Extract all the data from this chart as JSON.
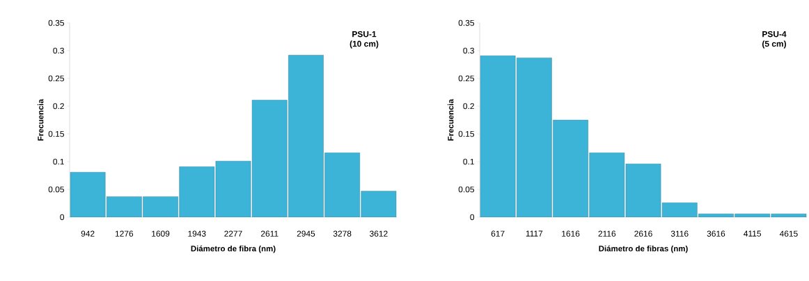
{
  "chart_data": [
    {
      "type": "bar",
      "title": "PSU-1",
      "subtitle": "(10 cm)",
      "xlabel": "Diámetro de fibra (nm)",
      "ylabel": "Frecuencia",
      "categories": [
        "942",
        "1276",
        "1609",
        "1943",
        "2277",
        "2611",
        "2945",
        "3278",
        "3612"
      ],
      "values": [
        0.081,
        0.037,
        0.037,
        0.091,
        0.101,
        0.211,
        0.292,
        0.116,
        0.047
      ],
      "color": "#3bb4d8",
      "ylim": [
        0,
        0.35
      ],
      "yticks": [
        0,
        0.05,
        0.1,
        0.15,
        0.2,
        0.25,
        0.3,
        0.35
      ],
      "grid": false
    },
    {
      "type": "bar",
      "title": "PSU-4",
      "subtitle": "(5 cm)",
      "xlabel": "Diámetro de  fibras (nm)",
      "ylabel": "Frecuencia",
      "categories": [
        "617",
        "1117",
        "1616",
        "2116",
        "2616",
        "3116",
        "3616",
        "4115",
        "4615"
      ],
      "values": [
        0.291,
        0.287,
        0.175,
        0.116,
        0.096,
        0.026,
        0.006,
        0.006,
        0.006
      ],
      "color": "#3bb4d8",
      "ylim": [
        0,
        0.35
      ],
      "yticks": [
        0,
        0.05,
        0.1,
        0.15,
        0.2,
        0.25,
        0.3,
        0.35
      ],
      "grid": false
    }
  ]
}
